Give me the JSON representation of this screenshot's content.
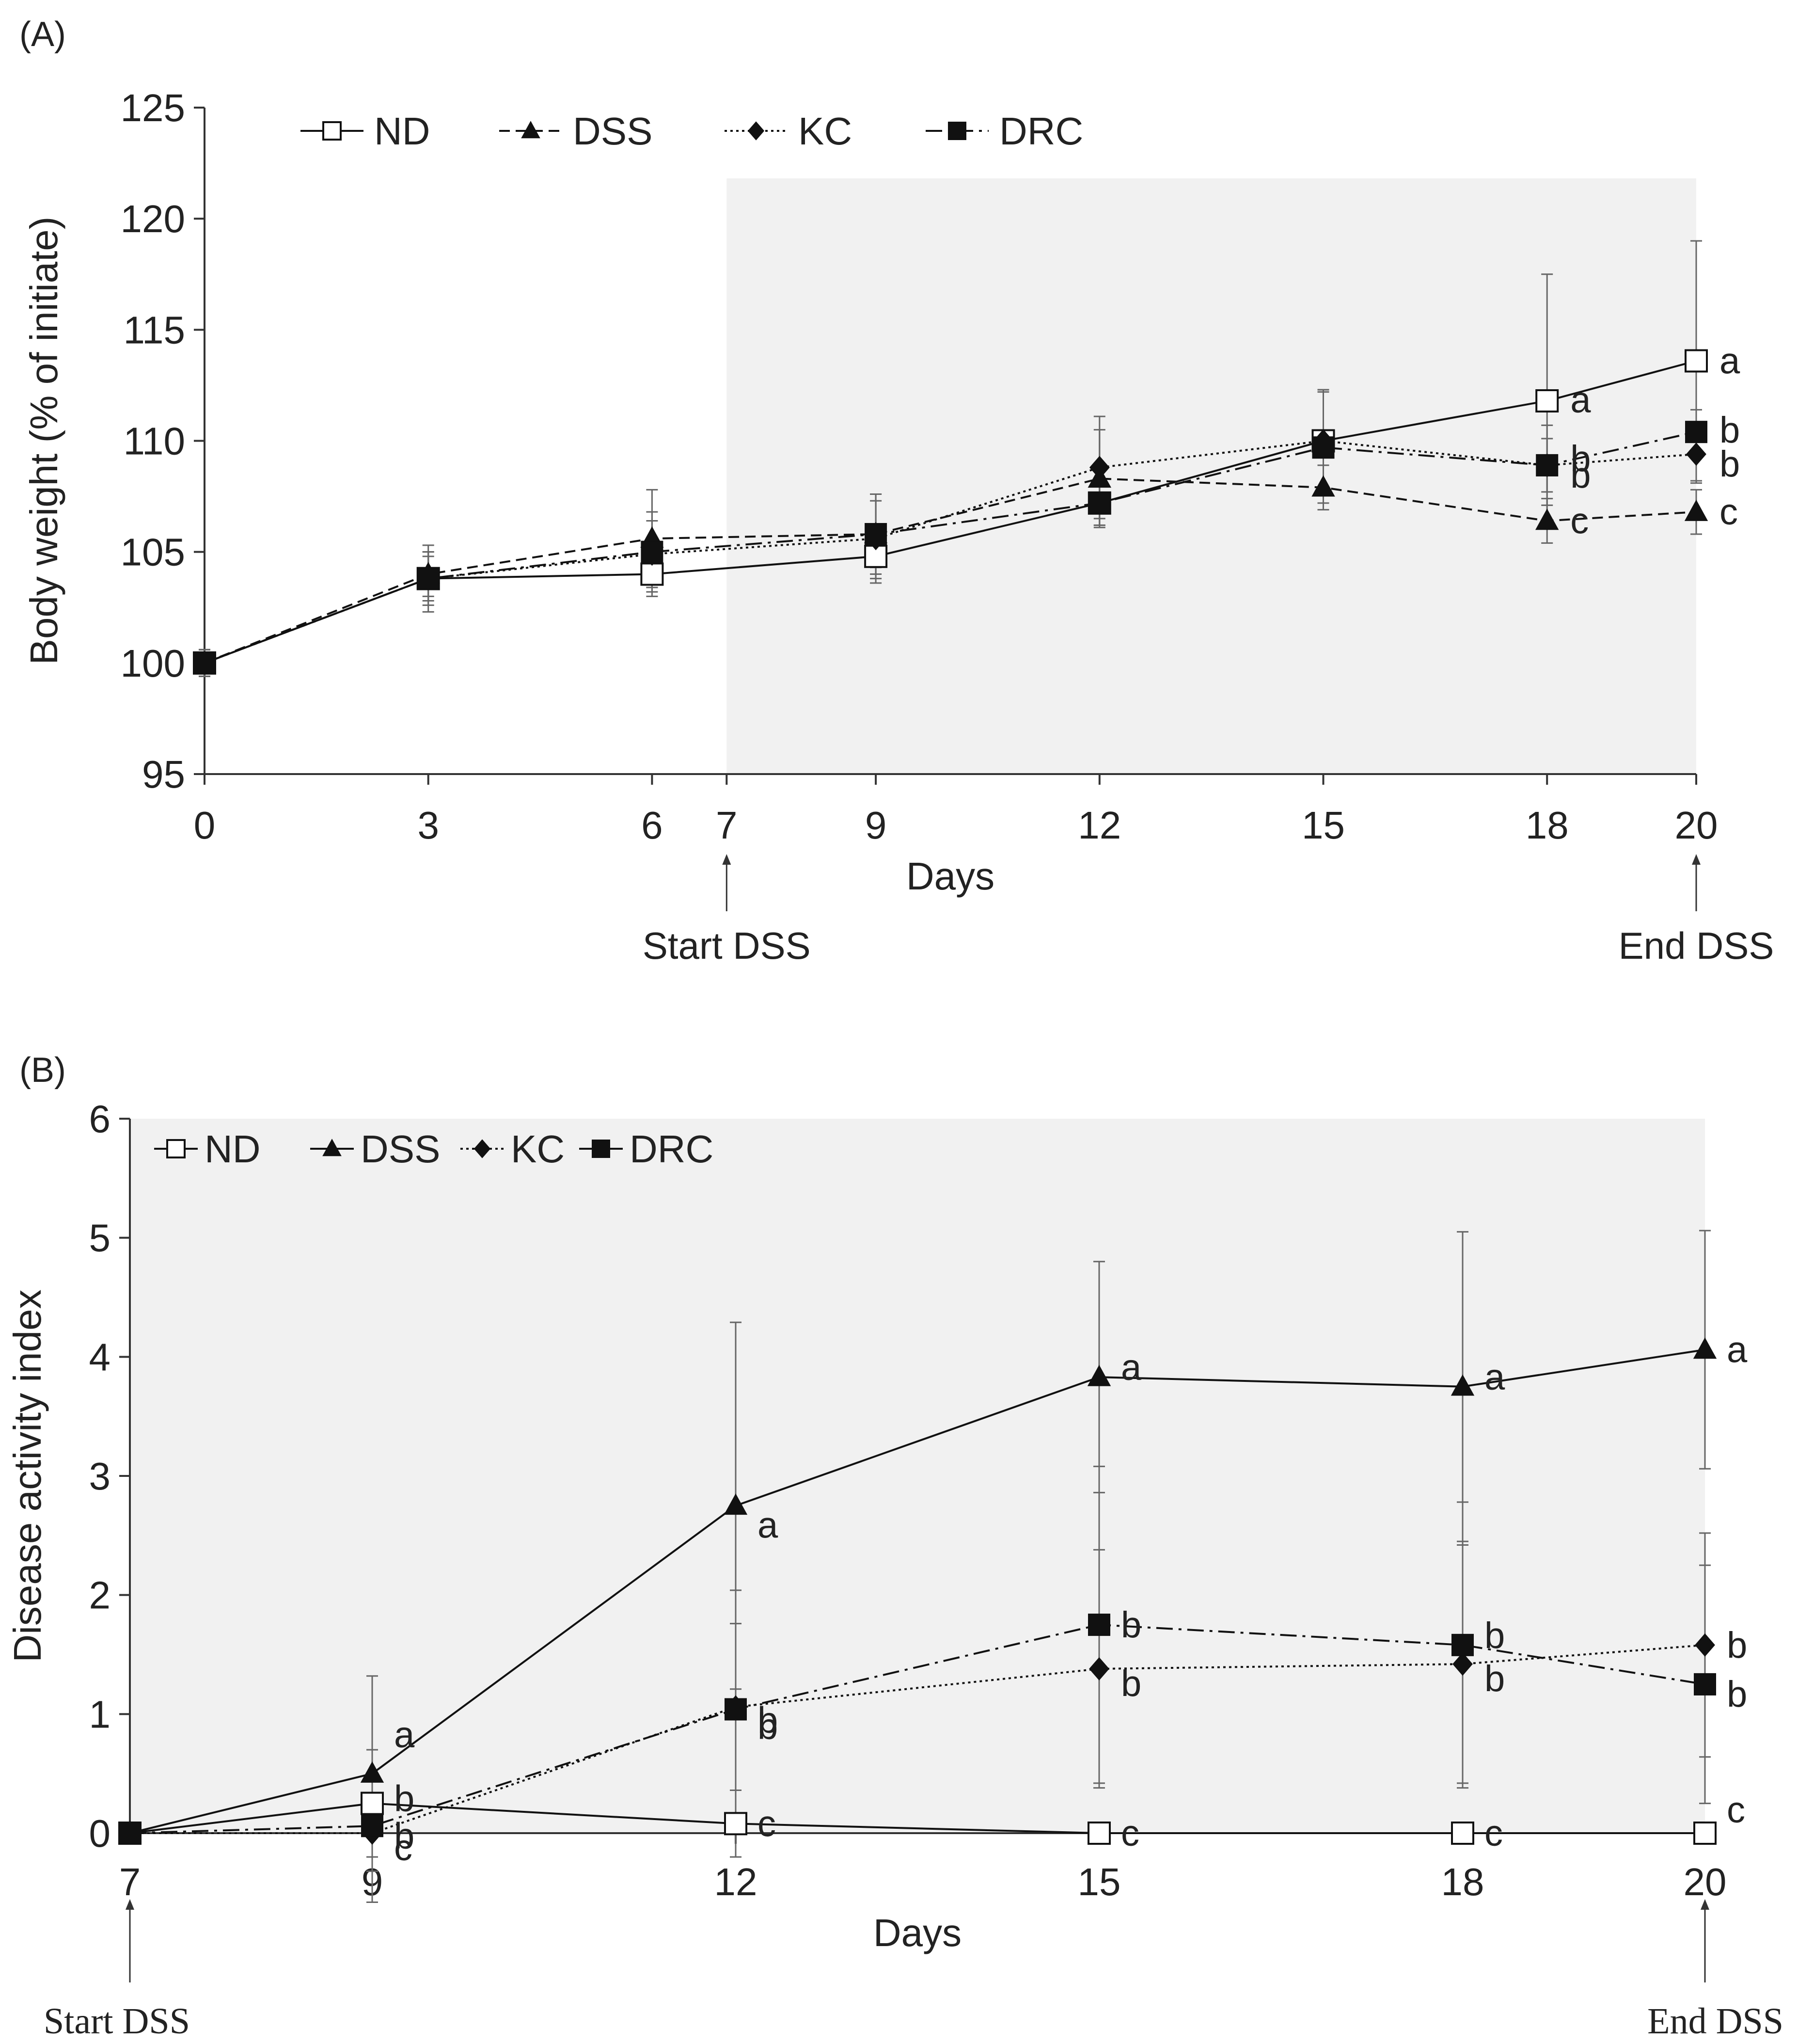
{
  "chart_data": [
    {
      "type": "line",
      "panel_label": "(A)",
      "title": "",
      "xlabel": "Days",
      "ylabel": "Body weight (% of initiate)",
      "ylim": [
        95,
        125
      ],
      "xlim": [
        0,
        20
      ],
      "yticks": [
        "95",
        "100",
        "105",
        "110",
        "115",
        "120",
        "125"
      ],
      "xticks": [
        "0",
        "3",
        "6",
        "7",
        "9",
        "12",
        "15",
        "18",
        "20"
      ],
      "shaded_range": [
        7,
        20
      ],
      "x": [
        0,
        3,
        6,
        9,
        12,
        15,
        18,
        20
      ],
      "series": [
        {
          "name": "ND",
          "marker": "open-square",
          "dash": "solid",
          "values": [
            100,
            103.8,
            104.0,
            104.8,
            107.2,
            110.0,
            111.8,
            113.6
          ],
          "errors": [
            0.6,
            1.0,
            1.0,
            1.0,
            1.0,
            2.3,
            5.7,
            5.4
          ],
          "letters": {
            "18": "a",
            "20": "a"
          }
        },
        {
          "name": "DSS",
          "marker": "triangle",
          "dash": "dashed",
          "values": [
            100,
            104.0,
            105.6,
            105.8,
            108.3,
            107.9,
            106.4,
            106.8
          ],
          "errors": [
            0.6,
            1.0,
            2.2,
            1.8,
            2.2,
            1.0,
            1.0,
            1.0
          ],
          "letters": {
            "18": "c",
            "20": "c"
          }
        },
        {
          "name": "KC",
          "marker": "diamond",
          "dash": "dotted",
          "values": [
            100,
            103.8,
            104.9,
            105.6,
            108.8,
            110.0,
            108.9,
            109.4
          ],
          "errors": [
            0.6,
            1.2,
            1.5,
            2.0,
            2.3,
            2.3,
            1.8,
            1.3
          ],
          "letters": {
            "18": "b",
            "20": "b"
          }
        },
        {
          "name": "DRC",
          "marker": "filled-square",
          "dash": "dash-dot",
          "values": [
            100,
            103.8,
            105.0,
            105.8,
            107.2,
            109.7,
            108.9,
            110.4
          ],
          "errors": [
            0.6,
            1.5,
            1.8,
            1.5,
            1.0,
            2.5,
            1.2,
            1.0
          ],
          "letters": {
            "18": "b",
            "20": "b"
          }
        }
      ],
      "annotations": [
        {
          "text": "Start DSS",
          "x": 7
        },
        {
          "text": "End DSS",
          "x": 20
        }
      ]
    },
    {
      "type": "line",
      "panel_label": "(B)",
      "title": "",
      "xlabel": "Days",
      "ylabel": "Disease activity index",
      "ylim": [
        0,
        6
      ],
      "xlim": [
        7,
        20
      ],
      "yticks": [
        "0",
        "1",
        "2",
        "3",
        "4",
        "5",
        "6"
      ],
      "xticks": [
        "7",
        "9",
        "12",
        "15",
        "18",
        "20"
      ],
      "shaded_range": [
        7,
        20
      ],
      "x": [
        7,
        9,
        12,
        15,
        18,
        20
      ],
      "series": [
        {
          "name": "ND",
          "marker": "open-square",
          "dash": "solid",
          "values": [
            0,
            0.25,
            0.08,
            0,
            0,
            0
          ],
          "errors": [
            0,
            0.45,
            0.28,
            0,
            0,
            0
          ],
          "letters": {
            "9": "b",
            "12": "c",
            "15": "c",
            "18": "c",
            "20": "c"
          }
        },
        {
          "name": "DSS",
          "marker": "triangle",
          "dash": "solid",
          "values": [
            0,
            0.5,
            2.75,
            3.83,
            3.75,
            4.06
          ],
          "errors": [
            0,
            0.82,
            1.54,
            0.97,
            1.3,
            1.0
          ],
          "letters": {
            "9": "a",
            "12": "a",
            "15": "a",
            "18": "a",
            "20": "a"
          }
        },
        {
          "name": "KC",
          "marker": "diamond",
          "dash": "dotted",
          "values": [
            0,
            0,
            1.06,
            1.38,
            1.42,
            1.58
          ],
          "errors": [
            0,
            0,
            0.7,
            1.0,
            1.0,
            0.94
          ],
          "letters": {
            "9": "c",
            "12": "b",
            "15": "b",
            "18": "b",
            "20": "b"
          }
        },
        {
          "name": "DRC",
          "marker": "filled-square",
          "dash": "dash-dot",
          "values": [
            0,
            0.06,
            1.04,
            1.75,
            1.58,
            1.25
          ],
          "errors": [
            0,
            0.64,
            1.0,
            1.33,
            1.2,
            1.0
          ],
          "letters": {
            "9": "b",
            "12": "b",
            "15": "b",
            "18": "b",
            "20": "b"
          }
        }
      ],
      "annotations": [
        {
          "text": "Start DSS",
          "x": 7
        },
        {
          "text": "End DSS",
          "x": 20
        }
      ]
    }
  ]
}
